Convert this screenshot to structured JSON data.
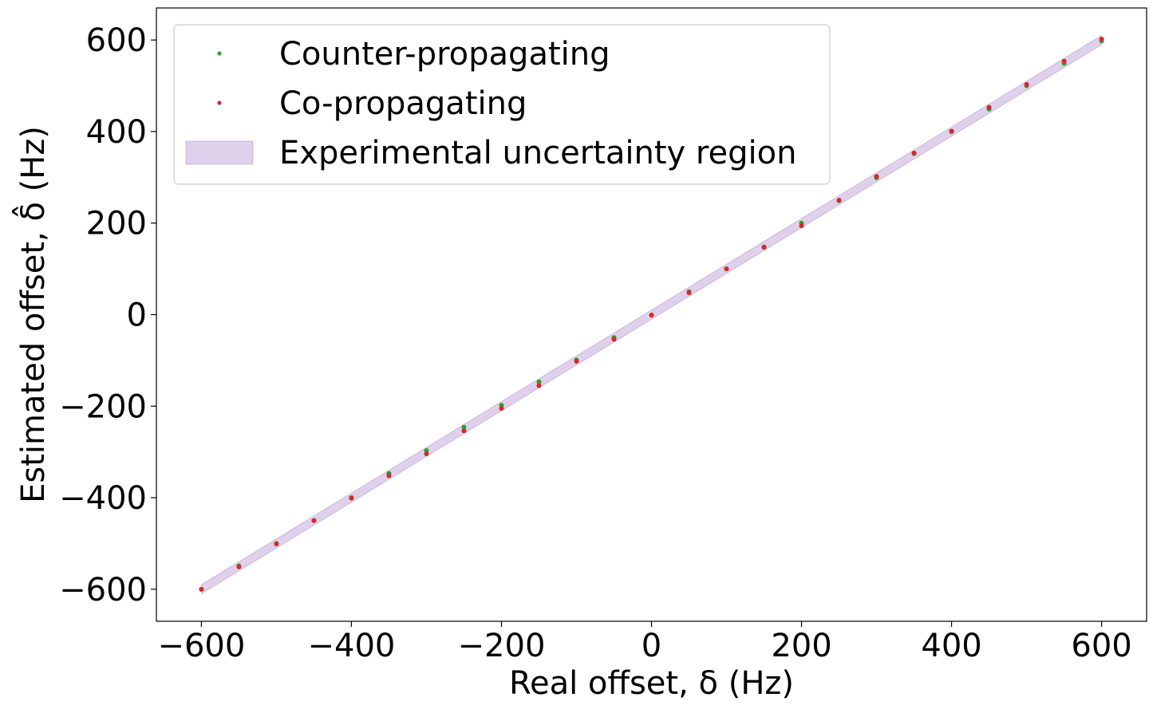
{
  "chart_data": {
    "type": "scatter",
    "xlabel": "Real offset, δ (Hz)",
    "ylabel": "Estimated offset, δ̂ (Hz)",
    "xlim": [
      -660,
      660
    ],
    "ylim": [
      -670,
      670
    ],
    "xticks": [
      -600,
      -400,
      -200,
      0,
      200,
      400,
      600
    ],
    "yticks": [
      -600,
      -400,
      -200,
      0,
      200,
      400,
      600
    ],
    "xtick_labels": [
      "−600",
      "−400",
      "−200",
      "0",
      "200",
      "400",
      "600"
    ],
    "ytick_labels": [
      "−600",
      "−400",
      "−200",
      "0",
      "200",
      "400",
      "600"
    ],
    "grid": false,
    "legend_position": "top-left",
    "series": [
      {
        "name": "Counter-propagating",
        "color": "#2ca02c",
        "x": [
          -600,
          -550,
          -500,
          -450,
          -400,
          -350,
          -300,
          -250,
          -200,
          -150,
          -100,
          -50,
          0,
          50,
          100,
          150,
          200,
          250,
          300,
          350,
          400,
          450,
          500,
          550,
          600
        ],
        "y": [
          -600,
          -549,
          -500,
          -450,
          -400,
          -347,
          -297,
          -246,
          -198,
          -147,
          -99,
          -50,
          -1,
          50,
          100,
          148,
          200,
          249,
          299,
          352,
          400,
          449,
          500,
          549,
          598
        ]
      },
      {
        "name": "Co-propagating",
        "color": "#d62728",
        "x": [
          -600,
          -550,
          -500,
          -450,
          -400,
          -350,
          -300,
          -250,
          -200,
          -150,
          -100,
          -50,
          0,
          50,
          100,
          150,
          200,
          250,
          300,
          350,
          400,
          450,
          500,
          550,
          600
        ],
        "y": [
          -600,
          -551,
          -501,
          -450,
          -401,
          -352,
          -304,
          -254,
          -205,
          -155,
          -102,
          -54,
          -1,
          48,
          100,
          147,
          194,
          250,
          302,
          353,
          401,
          453,
          503,
          554,
          602
        ]
      }
    ],
    "band": {
      "name": "Experimental uncertainty region",
      "color": "#9467bd",
      "x_range": [
        -600,
        600
      ],
      "half_width": 10
    }
  }
}
